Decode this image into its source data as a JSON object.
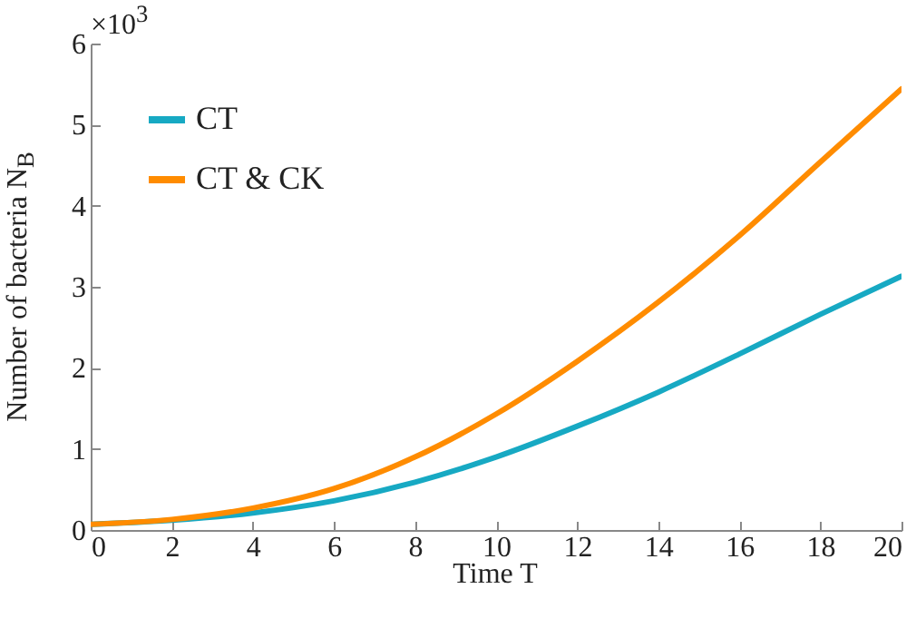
{
  "chart_data": {
    "type": "line",
    "xlabel": "Time T",
    "ylabel": "Number of bacteria N$_{B}$",
    "annotations": [
      "×10$^{3}$"
    ],
    "x": [
      0,
      2,
      4,
      6,
      8,
      10,
      12,
      14,
      16,
      18,
      20
    ],
    "series": [
      {
        "name": "CT",
        "color": "#17a9c3",
        "values": [
          0.07,
          0.12,
          0.21,
          0.36,
          0.59,
          0.9,
          1.28,
          1.7,
          2.17,
          2.66,
          3.13
        ]
      },
      {
        "name": "CT & CK",
        "color": "#ff8c00",
        "values": [
          0.07,
          0.13,
          0.27,
          0.51,
          0.9,
          1.43,
          2.08,
          2.81,
          3.63,
          4.54,
          5.44
        ]
      }
    ],
    "xlim": [
      0,
      20
    ],
    "xticks": [
      0,
      2,
      4,
      6,
      8,
      10,
      12,
      14,
      16,
      18,
      20
    ],
    "ylim": [
      0,
      6
    ],
    "yticks": [
      0,
      1,
      2,
      3,
      4,
      5,
      6
    ],
    "grid": false,
    "legend": "top left",
    "marker": "none",
    "line_style": "solid"
  }
}
